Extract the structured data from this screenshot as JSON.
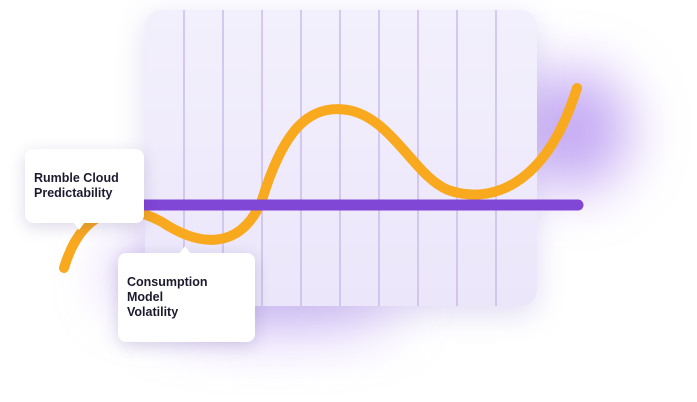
{
  "labels": {
    "predictability": "Rumble Cloud\nPredictability",
    "volatility": "Consumption Model\nVolatility"
  },
  "colors": {
    "panel": "#EDE9FB",
    "grid_line": "#C9BCEB",
    "flat_line": "#8046D6",
    "wave_line": "#F8A91E",
    "glow": "#9C6AF0",
    "callout_bg": "#FFFFFF",
    "callout_text": "#1C1B2E"
  }
}
